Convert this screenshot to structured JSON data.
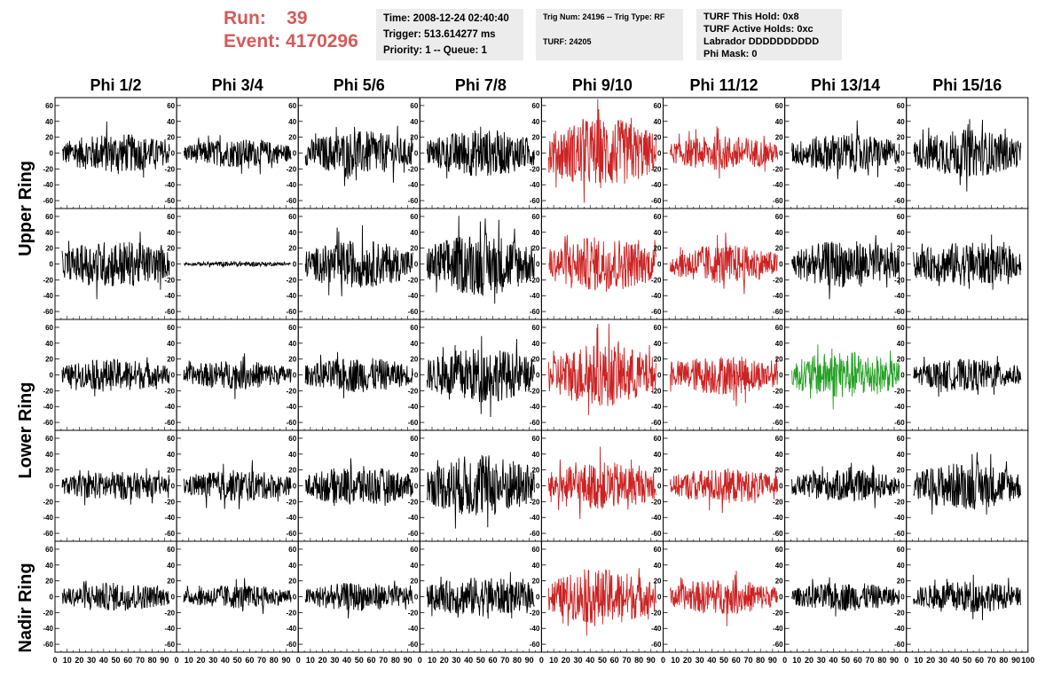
{
  "run": {
    "run_label": "Run:",
    "run_value": "39",
    "event_label": "Event:",
    "event_value": "4170296"
  },
  "info_box_1": [
    "Time: 2008-12-24 02:40:40",
    "Trigger: 513.614277 ms",
    "Priority: 1 -- Queue: 1"
  ],
  "info_box_2": [
    "Trig Num: 24196 -- Trig Type: RF",
    "TURF: 24205"
  ],
  "info_box_3": [
    "TURF This Hold: 0x8",
    "TURF Active Holds: 0xc",
    "Labrador DDDDDDDDDD",
    "Phi Mask: 0"
  ],
  "columns": [
    "Phi 1/2",
    "Phi 3/4",
    "Phi 5/6",
    "Phi 7/8",
    "Phi 9/10",
    "Phi 11/12",
    "Phi 13/14",
    "Phi 15/16"
  ],
  "rows": [
    "Upper Ring",
    "Lower Ring",
    "Nadir Ring"
  ],
  "colors": {
    "normal": "#000000",
    "triggered": "#cc2222",
    "highlight": "#22a022",
    "header_red": "#d45a5a",
    "info_bg": "#ececec"
  },
  "chart_data": {
    "type": "line",
    "x_range": [
      0,
      100
    ],
    "y_range": [
      -70,
      70
    ],
    "y_ticks": [
      60,
      40,
      20,
      0,
      -20,
      -40,
      -60
    ],
    "x_ticks": [
      0,
      10,
      20,
      30,
      40,
      50,
      60,
      70,
      80,
      90,
      100
    ],
    "panel_rows": 5,
    "panel_cols": 8,
    "waveform_colors": [
      [
        "normal",
        "normal",
        "normal",
        "normal",
        "triggered",
        "triggered",
        "normal",
        "normal"
      ],
      [
        "normal",
        "normal",
        "normal",
        "normal",
        "triggered",
        "triggered",
        "normal",
        "normal"
      ],
      [
        "normal",
        "normal",
        "normal",
        "normal",
        "triggered",
        "triggered",
        "highlight",
        "normal"
      ],
      [
        "normal",
        "normal",
        "normal",
        "normal",
        "triggered",
        "triggered",
        "normal",
        "normal"
      ],
      [
        "normal",
        "normal",
        "normal",
        "normal",
        "triggered",
        "triggered",
        "normal",
        "normal"
      ]
    ],
    "waveform_amplitudes": [
      [
        25,
        18,
        28,
        30,
        45,
        22,
        25,
        30
      ],
      [
        30,
        3,
        30,
        40,
        35,
        25,
        30,
        28
      ],
      [
        20,
        18,
        22,
        35,
        40,
        25,
        30,
        20
      ],
      [
        18,
        20,
        25,
        40,
        30,
        22,
        20,
        30
      ],
      [
        18,
        15,
        18,
        25,
        35,
        22,
        18,
        20
      ]
    ]
  }
}
